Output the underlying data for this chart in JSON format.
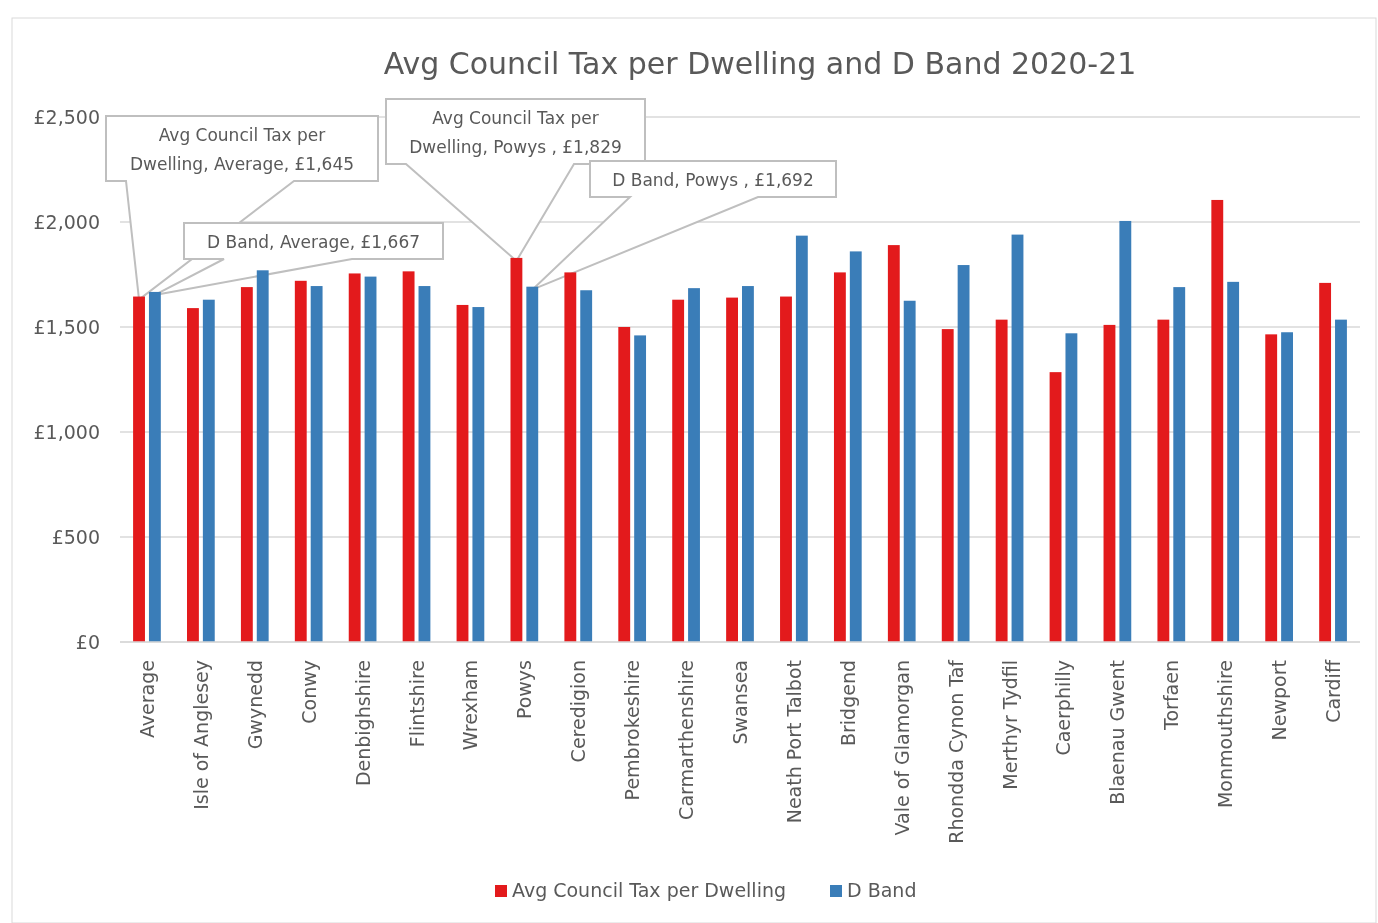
{
  "chart_data": {
    "type": "bar",
    "title": "Avg Council Tax per Dwelling and D Band 2020-21",
    "categories": [
      "Average",
      "Isle of Anglesey",
      "Gwynedd",
      "Conwy",
      "Denbighshire",
      "Flintshire",
      "Wrexham",
      "Powys",
      "Ceredigion",
      "Pembrokeshire",
      "Carmarthenshire",
      "Swansea",
      "Neath Port Talbot",
      "Bridgend",
      "Vale of Glamorgan",
      "Rhondda Cynon Taf",
      "Merthyr Tydfil",
      "Caerphilly",
      "Blaenau Gwent",
      "Torfaen",
      "Monmouthshire",
      "Newport",
      "Cardiff"
    ],
    "series": [
      {
        "name": "Avg Council Tax per Dwelling",
        "color": "#e31a1c",
        "values": [
          1645,
          1590,
          1690,
          1720,
          1755,
          1765,
          1605,
          1829,
          1760,
          1500,
          1630,
          1640,
          1645,
          1760,
          1890,
          1490,
          1535,
          1285,
          1510,
          1535,
          2105,
          1465,
          1710
        ]
      },
      {
        "name": "D Band",
        "color": "#3a7db8",
        "values": [
          1667,
          1630,
          1770,
          1695,
          1740,
          1695,
          1595,
          1692,
          1675,
          1460,
          1685,
          1695,
          1935,
          1860,
          1625,
          1795,
          1940,
          1470,
          2005,
          1690,
          1715,
          1475,
          1535
        ]
      }
    ],
    "ylim": [
      0,
      2500
    ],
    "yticks": [
      {
        "value": 0,
        "label": "£0"
      },
      {
        "value": 500,
        "label": "£500"
      },
      {
        "value": 1000,
        "label": "£1,000"
      },
      {
        "value": 1500,
        "label": "£1,500"
      },
      {
        "value": 2000,
        "label": "£2,000"
      },
      {
        "value": 2500,
        "label": "£2,500"
      }
    ],
    "grid": "y",
    "legend": "bottom",
    "annotations": [
      "Avg Council Tax per Dwelling, Average, £1,645",
      "D Band, Average, £1,667",
      "Avg Council Tax per Dwelling, Powys , £1,829",
      "D Band, Powys , £1,692"
    ]
  }
}
